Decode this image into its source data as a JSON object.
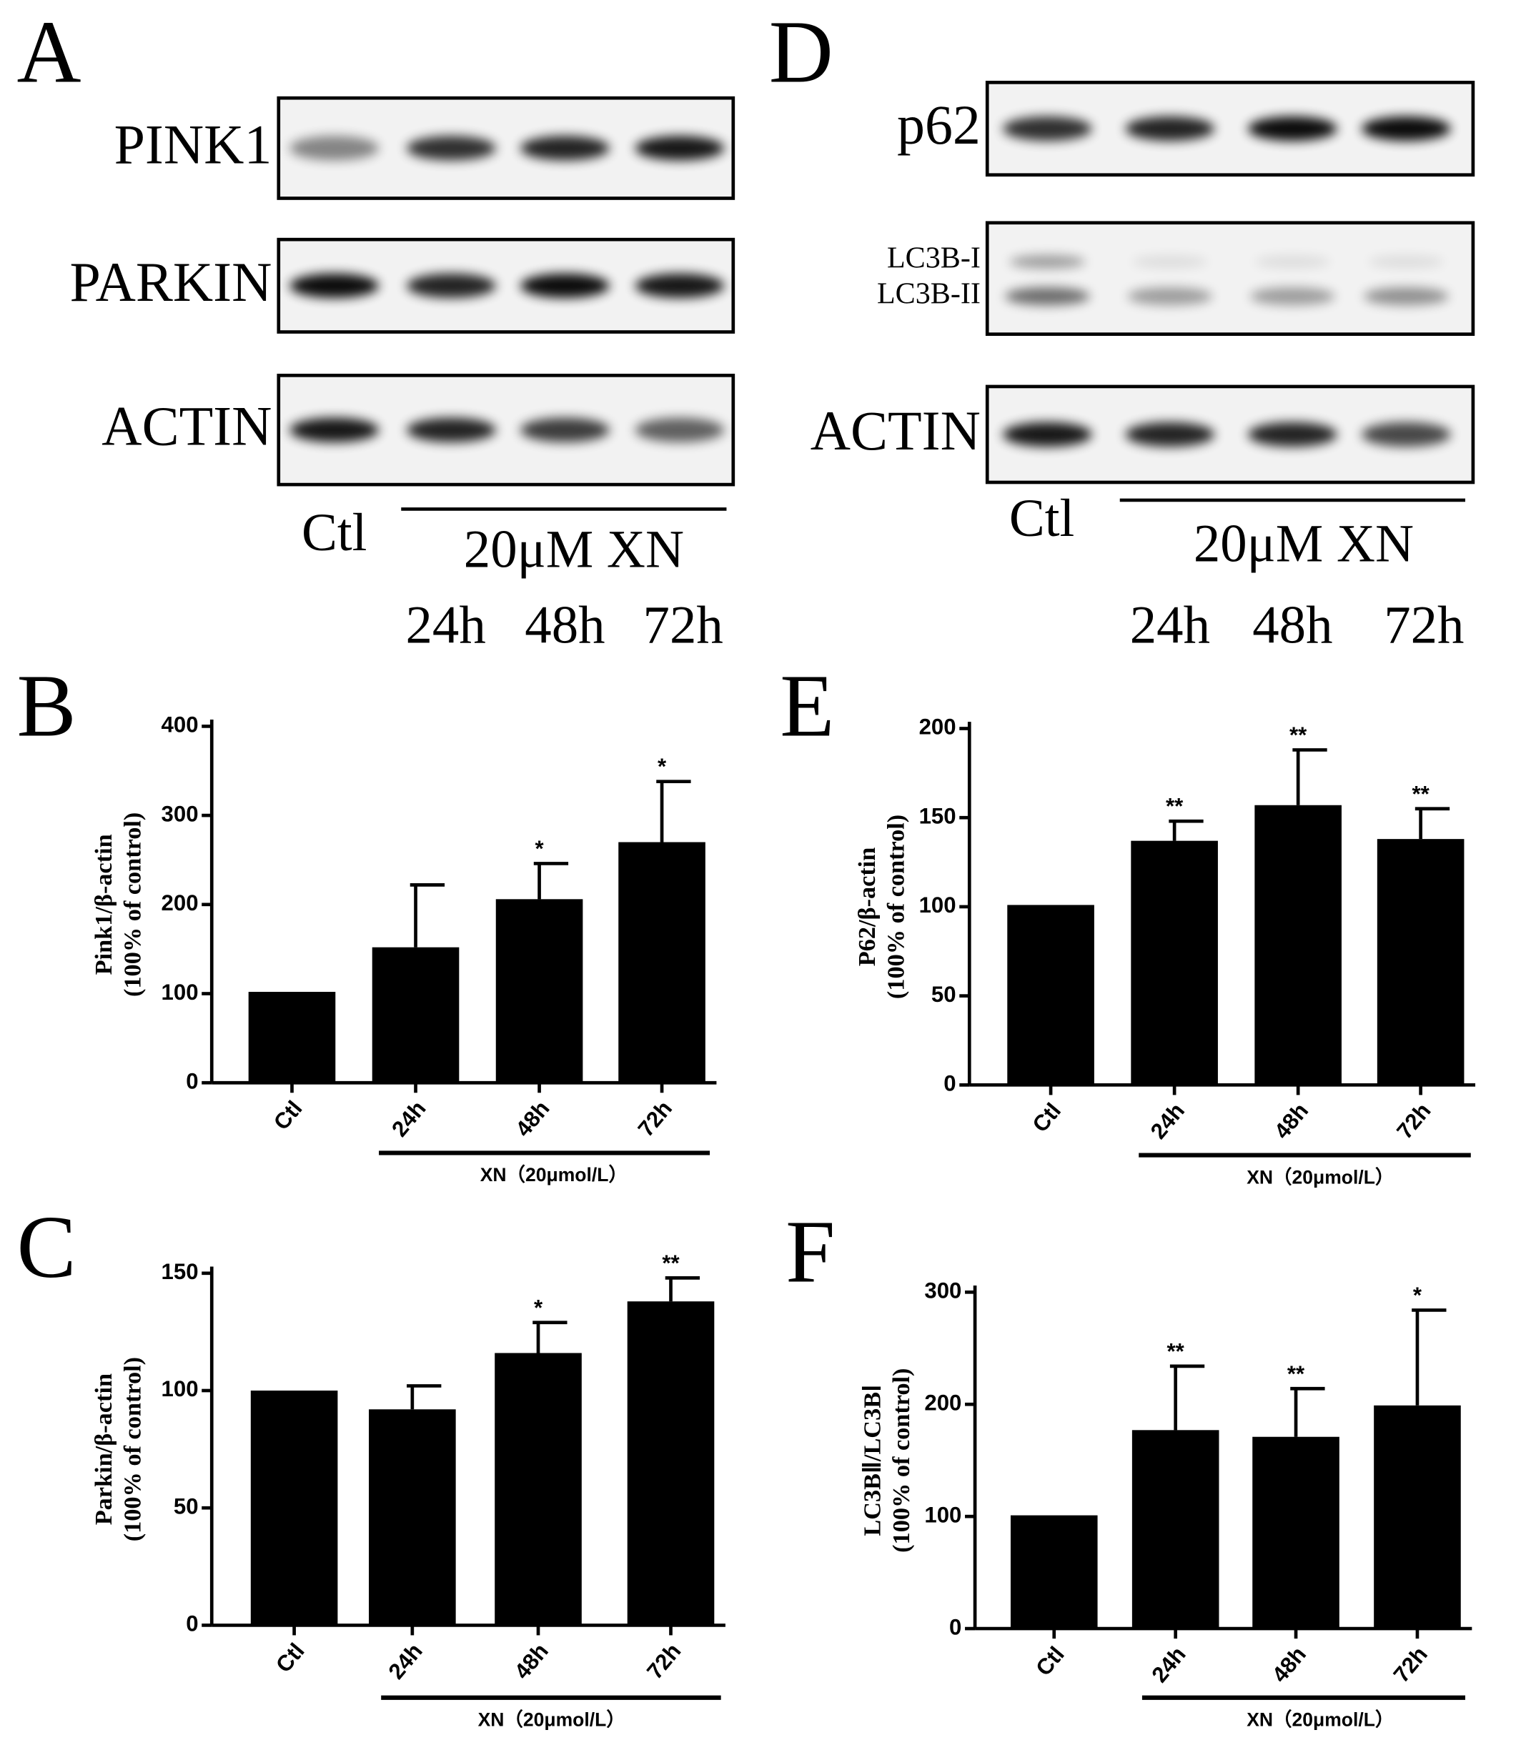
{
  "blots": [
    {
      "panel": "A",
      "rows": [
        [
          "PINK1"
        ],
        [
          "PARKIN"
        ],
        [
          "ACTIN"
        ]
      ],
      "control": "Ctl",
      "treatment": "20μM XN",
      "times": [
        "24h",
        "48h",
        "72h"
      ]
    },
    {
      "panel": "D",
      "rows": [
        [
          "p62"
        ],
        [
          "LC3B-I",
          "LC3B-II"
        ],
        [
          "ACTIN"
        ]
      ],
      "control": "Ctl",
      "treatment": "20μM XN",
      "times": [
        "24h",
        "48h",
        "72h"
      ]
    }
  ],
  "chart_data": [
    {
      "type": "bar",
      "panel": "B",
      "ylabel": [
        "Pink1/β-actin",
        "(100% of control)"
      ],
      "categories": [
        "Ctl",
        "24h",
        "48h",
        "72h"
      ],
      "values": [
        102,
        152,
        206,
        270
      ],
      "errors": [
        0,
        70,
        40,
        68
      ],
      "significance": [
        null,
        null,
        "*",
        "*"
      ],
      "group_label": "XN（20μmol/L）",
      "color": "#000000",
      "ylim": [
        0,
        400
      ],
      "yticks": [
        0,
        100,
        200,
        300,
        400
      ]
    },
    {
      "type": "bar",
      "panel": "C",
      "ylabel": [
        "Parkin/β-actin",
        "(100% of control)"
      ],
      "categories": [
        "Ctl",
        "24h",
        "48h",
        "72h"
      ],
      "values": [
        100,
        92,
        116,
        138
      ],
      "errors": [
        0,
        10,
        13,
        10
      ],
      "significance": [
        null,
        null,
        "*",
        "**"
      ],
      "group_label": "XN（20μmol/L）",
      "color": "#000000",
      "ylim": [
        0,
        150
      ],
      "yticks": [
        0,
        50,
        100,
        150
      ]
    },
    {
      "type": "bar",
      "panel": "E",
      "ylabel": [
        "P62/β-actin",
        "(100% of control)"
      ],
      "categories": [
        "Ctl",
        "24h",
        "48h",
        "72h"
      ],
      "values": [
        101,
        137,
        157,
        138
      ],
      "errors": [
        0,
        11,
        31,
        17
      ],
      "significance": [
        null,
        "**",
        "**",
        "**"
      ],
      "group_label": "XN（20μmol/L）",
      "color": "#000000",
      "ylim": [
        0,
        200
      ],
      "yticks": [
        0,
        50,
        100,
        150,
        200
      ]
    },
    {
      "type": "bar",
      "panel": "F",
      "ylabel": [
        "LC3BⅡ/LC3BⅠ",
        "(100% of control)"
      ],
      "categories": [
        "Ctl",
        "24h",
        "48h",
        "72h"
      ],
      "values": [
        101,
        177,
        171,
        199
      ],
      "errors": [
        0,
        57,
        43,
        85
      ],
      "significance": [
        null,
        "**",
        "**",
        "*"
      ],
      "group_label": "XN（20μmol/L）",
      "color": "#000000",
      "ylim": [
        0,
        300
      ],
      "yticks": [
        0,
        100,
        200,
        300
      ]
    }
  ]
}
